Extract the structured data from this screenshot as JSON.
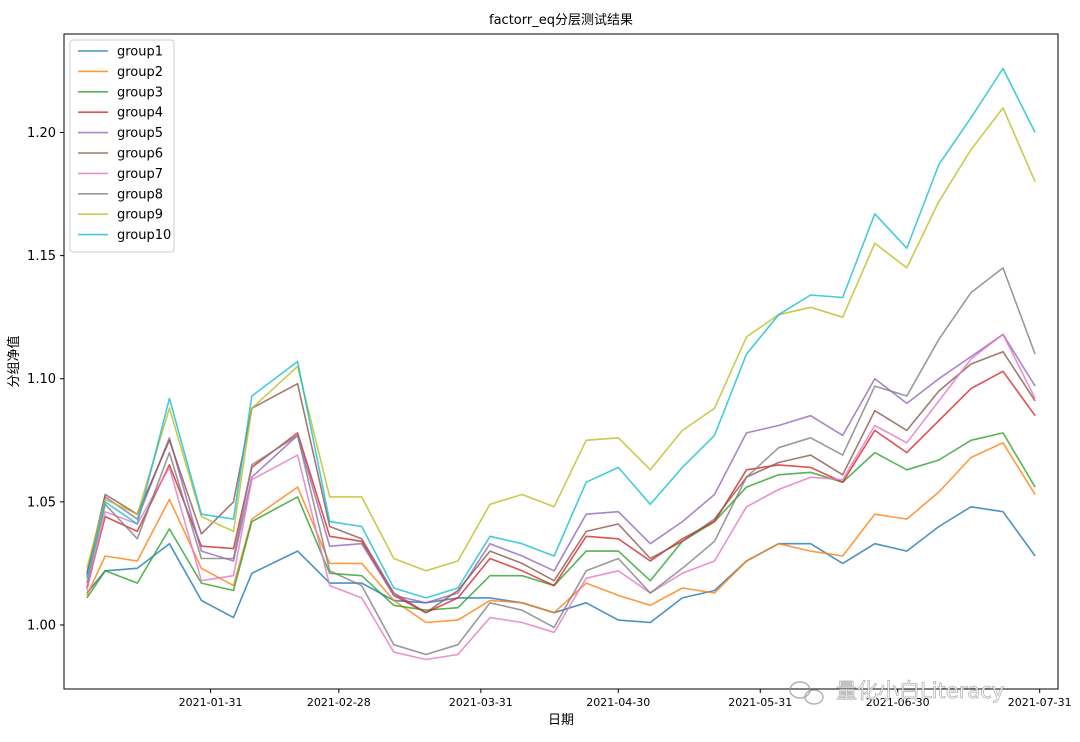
{
  "chart_data": {
    "type": "line",
    "title": "factorr_eq分层测试结果",
    "xlabel": "日期",
    "ylabel": "分组净值",
    "xlim": [
      "2020-12-30",
      "2021-08-04"
    ],
    "ylim": [
      0.974,
      1.24
    ],
    "x_ticks": [
      "2021-01-31",
      "2021-02-28",
      "2021-03-31",
      "2021-04-30",
      "2021-05-31",
      "2021-06-30",
      "2021-07-31"
    ],
    "y_ticks": [
      1.0,
      1.05,
      1.1,
      1.15,
      1.2
    ],
    "y_tick_labels": [
      "1.00",
      "1.05",
      "1.10",
      "1.15",
      "1.20"
    ],
    "legend_position": "upper-left",
    "grid": false,
    "x": [
      "2021-01-04",
      "2021-01-08",
      "2021-01-15",
      "2021-01-22",
      "2021-01-29",
      "2021-02-05",
      "2021-02-09",
      "2021-02-19",
      "2021-02-26",
      "2021-03-05",
      "2021-03-12",
      "2021-03-19",
      "2021-03-26",
      "2021-04-02",
      "2021-04-09",
      "2021-04-16",
      "2021-04-23",
      "2021-04-30",
      "2021-05-07",
      "2021-05-14",
      "2021-05-21",
      "2021-05-28",
      "2021-06-04",
      "2021-06-11",
      "2021-06-18",
      "2021-06-25",
      "2021-07-02",
      "2021-07-09",
      "2021-07-16",
      "2021-07-23",
      "2021-07-30"
    ],
    "series": [
      {
        "name": "group1",
        "color": "#1f77b4",
        "values": [
          1.013,
          1.022,
          1.023,
          1.033,
          1.01,
          1.003,
          1.021,
          1.03,
          1.017,
          1.017,
          1.01,
          1.009,
          1.011,
          1.011,
          1.009,
          1.005,
          1.009,
          1.002,
          1.001,
          1.011,
          1.014,
          1.026,
          1.033,
          1.033,
          1.025,
          1.033,
          1.03,
          1.04,
          1.048,
          1.046,
          1.028
        ]
      },
      {
        "name": "group2",
        "color": "#ff7f0e",
        "values": [
          1.012,
          1.028,
          1.026,
          1.051,
          1.023,
          1.016,
          1.043,
          1.056,
          1.025,
          1.025,
          1.01,
          1.001,
          1.002,
          1.01,
          1.009,
          1.005,
          1.017,
          1.012,
          1.008,
          1.015,
          1.013,
          1.026,
          1.033,
          1.03,
          1.028,
          1.045,
          1.043,
          1.054,
          1.068,
          1.074,
          1.053
        ]
      },
      {
        "name": "group3",
        "color": "#2ca02c",
        "values": [
          1.011,
          1.022,
          1.017,
          1.039,
          1.017,
          1.014,
          1.042,
          1.052,
          1.021,
          1.02,
          1.008,
          1.006,
          1.007,
          1.02,
          1.02,
          1.016,
          1.03,
          1.03,
          1.018,
          1.034,
          1.042,
          1.056,
          1.061,
          1.062,
          1.058,
          1.07,
          1.063,
          1.067,
          1.075,
          1.078,
          1.056
        ]
      },
      {
        "name": "group4",
        "color": "#d62728",
        "values": [
          1.015,
          1.044,
          1.038,
          1.065,
          1.032,
          1.031,
          1.064,
          1.078,
          1.036,
          1.034,
          1.012,
          1.005,
          1.011,
          1.027,
          1.022,
          1.016,
          1.036,
          1.035,
          1.026,
          1.035,
          1.042,
          1.063,
          1.065,
          1.064,
          1.058,
          1.079,
          1.07,
          1.083,
          1.096,
          1.103,
          1.085
        ]
      },
      {
        "name": "group5",
        "color": "#9467bd",
        "values": [
          1.02,
          1.052,
          1.043,
          1.076,
          1.03,
          1.026,
          1.06,
          1.077,
          1.032,
          1.033,
          1.012,
          1.009,
          1.013,
          1.033,
          1.028,
          1.022,
          1.045,
          1.046,
          1.033,
          1.042,
          1.053,
          1.078,
          1.081,
          1.085,
          1.077,
          1.1,
          1.09,
          1.1,
          1.109,
          1.118,
          1.097
        ]
      },
      {
        "name": "group6",
        "color": "#8c564b",
        "values": [
          1.021,
          1.053,
          1.045,
          1.075,
          1.037,
          1.05,
          1.088,
          1.098,
          1.04,
          1.035,
          1.013,
          1.005,
          1.014,
          1.03,
          1.025,
          1.018,
          1.038,
          1.041,
          1.027,
          1.034,
          1.043,
          1.06,
          1.066,
          1.069,
          1.061,
          1.087,
          1.079,
          1.095,
          1.106,
          1.111,
          1.091
        ]
      },
      {
        "name": "group7",
        "color": "#e377c2",
        "values": [
          1.014,
          1.046,
          1.041,
          1.064,
          1.018,
          1.02,
          1.059,
          1.069,
          1.016,
          1.011,
          0.989,
          0.986,
          0.988,
          1.003,
          1.001,
          0.997,
          1.019,
          1.022,
          1.013,
          1.021,
          1.026,
          1.048,
          1.055,
          1.06,
          1.059,
          1.081,
          1.074,
          1.091,
          1.108,
          1.118,
          1.092
        ]
      },
      {
        "name": "group8",
        "color": "#7f7f7f",
        "values": [
          1.017,
          1.049,
          1.035,
          1.07,
          1.027,
          1.027,
          1.065,
          1.077,
          1.022,
          1.016,
          0.992,
          0.988,
          0.992,
          1.009,
          1.006,
          0.999,
          1.022,
          1.027,
          1.013,
          1.023,
          1.034,
          1.06,
          1.072,
          1.076,
          1.069,
          1.097,
          1.093,
          1.116,
          1.135,
          1.145,
          1.11
        ]
      },
      {
        "name": "group9",
        "color": "#bcbd22",
        "values": [
          1.023,
          1.051,
          1.045,
          1.088,
          1.044,
          1.038,
          1.088,
          1.105,
          1.052,
          1.052,
          1.027,
          1.022,
          1.026,
          1.049,
          1.053,
          1.048,
          1.075,
          1.076,
          1.063,
          1.079,
          1.088,
          1.117,
          1.126,
          1.129,
          1.125,
          1.155,
          1.145,
          1.172,
          1.193,
          1.21,
          1.18
        ]
      },
      {
        "name": "group10",
        "color": "#17becf",
        "values": [
          1.019,
          1.05,
          1.041,
          1.092,
          1.045,
          1.043,
          1.093,
          1.107,
          1.042,
          1.04,
          1.015,
          1.011,
          1.015,
          1.036,
          1.033,
          1.028,
          1.058,
          1.064,
          1.049,
          1.064,
          1.077,
          1.11,
          1.126,
          1.134,
          1.133,
          1.167,
          1.153,
          1.187,
          1.206,
          1.226,
          1.2
        ]
      }
    ]
  },
  "watermark": {
    "text": "量化小白Literacy",
    "icon": "wechat-icon"
  }
}
